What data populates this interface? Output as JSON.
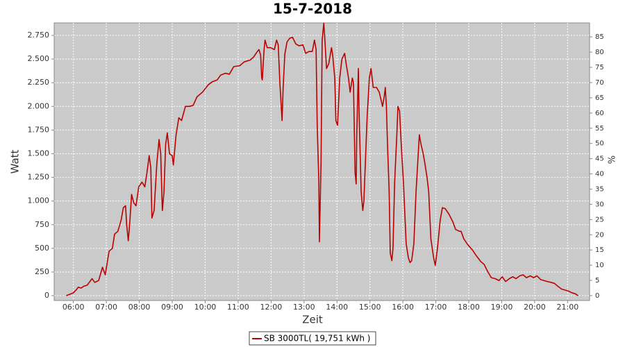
{
  "chart_data": {
    "type": "line",
    "title": "15-7-2018",
    "x_label": "Zeit",
    "y_label": "Watt",
    "y2_label": "%",
    "x": [
      "05:47",
      "06:00",
      "06:05",
      "06:09",
      "06:14",
      "06:19",
      "06:25",
      "06:34",
      "06:39",
      "06:46",
      "06:53",
      "06:58",
      "07:05",
      "07:11",
      "07:15",
      "07:21",
      "07:27",
      "07:31",
      "07:35",
      "07:37",
      "07:40",
      "07:43",
      "07:46",
      "07:50",
      "07:54",
      "07:59",
      "08:05",
      "08:10",
      "08:14",
      "08:18",
      "08:21",
      "08:23",
      "08:27",
      "08:32",
      "08:36",
      "08:39",
      "08:42",
      "08:45",
      "08:48",
      "08:51",
      "08:55",
      "09:00",
      "09:02",
      "09:07",
      "09:12",
      "09:17",
      "09:24",
      "09:31",
      "09:38",
      "09:45",
      "09:55",
      "10:06",
      "10:13",
      "10:22",
      "10:28",
      "10:37",
      "10:44",
      "10:52",
      "11:03",
      "11:11",
      "11:22",
      "11:28",
      "11:35",
      "11:38",
      "11:41",
      "11:43",
      "11:44",
      "11:47",
      "11:49",
      "11:53",
      "11:59",
      "12:06",
      "12:10",
      "12:13",
      "12:16",
      "12:20",
      "12:22",
      "12:25",
      "12:29",
      "12:34",
      "12:39",
      "12:45",
      "12:51",
      "12:58",
      "13:03",
      "13:09",
      "13:15",
      "13:19",
      "13:22",
      "13:24",
      "13:27",
      "13:28",
      "13:31",
      "13:33",
      "13:36",
      "13:38",
      "13:41",
      "13:45",
      "13:50",
      "13:52",
      "13:56",
      "13:58",
      "14:01",
      "14:05",
      "14:09",
      "14:14",
      "14:17",
      "14:21",
      "14:24",
      "14:28",
      "14:30",
      "14:33",
      "14:35",
      "14:36",
      "14:39",
      "14:40",
      "14:44",
      "14:47",
      "14:49",
      "14:53",
      "14:55",
      "14:59",
      "15:02",
      "15:06",
      "15:12",
      "15:17",
      "15:21",
      "15:23",
      "15:26",
      "15:28",
      "15:30",
      "15:32",
      "15:35",
      "15:37",
      "15:40",
      "15:42",
      "15:45",
      "15:49",
      "15:51",
      "15:54",
      "15:57",
      "16:01",
      "16:06",
      "16:10",
      "16:13",
      "16:16",
      "16:20",
      "16:24",
      "16:28",
      "16:30",
      "16:33",
      "16:37",
      "16:40",
      "16:44",
      "16:47",
      "16:51",
      "16:56",
      "16:59",
      "17:03",
      "17:08",
      "17:12",
      "17:17",
      "17:24",
      "17:31",
      "17:36",
      "17:43",
      "17:46",
      "17:51",
      "17:58",
      "18:07",
      "18:14",
      "18:22",
      "18:28",
      "18:34",
      "18:41",
      "18:48",
      "18:55",
      "19:01",
      "19:07",
      "19:14",
      "19:20",
      "19:26",
      "19:33",
      "19:39",
      "19:45",
      "19:52",
      "19:58",
      "20:04",
      "20:11",
      "20:17",
      "20:23",
      "20:30",
      "20:36",
      "20:42",
      "20:49",
      "20:55",
      "21:01",
      "21:08",
      "21:14",
      "21:19"
    ],
    "series": [
      {
        "name": "SB 3000TL( 19,751 kWh )",
        "color": "#bb0000",
        "values": [
          0,
          30,
          60,
          90,
          80,
          100,
          110,
          180,
          140,
          160,
          300,
          220,
          470,
          500,
          650,
          680,
          800,
          930,
          950,
          750,
          580,
          800,
          1070,
          980,
          950,
          1150,
          1200,
          1150,
          1300,
          1480,
          1350,
          820,
          900,
          1400,
          1650,
          1500,
          900,
          1100,
          1600,
          1720,
          1500,
          1480,
          1380,
          1700,
          1880,
          1850,
          2000,
          2000,
          2010,
          2100,
          2150,
          2230,
          2260,
          2280,
          2330,
          2350,
          2340,
          2420,
          2430,
          2470,
          2490,
          2520,
          2580,
          2600,
          2540,
          2300,
          2280,
          2580,
          2700,
          2620,
          2620,
          2600,
          2700,
          2650,
          2250,
          1850,
          2200,
          2550,
          2680,
          2720,
          2730,
          2660,
          2640,
          2650,
          2560,
          2580,
          2580,
          2700,
          2600,
          1800,
          1200,
          570,
          1400,
          2700,
          2880,
          2700,
          2400,
          2450,
          2620,
          2550,
          2300,
          1850,
          1800,
          2300,
          2500,
          2560,
          2440,
          2300,
          2150,
          2300,
          2250,
          1300,
          1180,
          1700,
          2400,
          2000,
          1100,
          900,
          1000,
          1600,
          1900,
          2300,
          2400,
          2200,
          2200,
          2150,
          2050,
          2000,
          2100,
          2200,
          2000,
          1600,
          1100,
          450,
          370,
          500,
          1200,
          1700,
          2000,
          1950,
          1600,
          1200,
          550,
          400,
          350,
          370,
          550,
          1100,
          1500,
          1700,
          1600,
          1500,
          1400,
          1250,
          1100,
          600,
          400,
          320,
          500,
          800,
          930,
          920,
          860,
          780,
          700,
          680,
          680,
          600,
          540,
          480,
          420,
          360,
          330,
          260,
          190,
          180,
          160,
          200,
          150,
          180,
          200,
          180,
          210,
          220,
          190,
          210,
          190,
          210,
          170,
          160,
          150,
          140,
          130,
          100,
          70,
          60,
          50,
          30,
          20,
          0
        ]
      }
    ],
    "xlim": [
      "05:25",
      "21:40"
    ],
    "xticks": [
      "06:00",
      "07:00",
      "08:00",
      "09:00",
      "10:00",
      "11:00",
      "12:00",
      "13:00",
      "14:00",
      "15:00",
      "16:00",
      "17:00",
      "18:00",
      "19:00",
      "20:00",
      "21:00"
    ],
    "ylim": [
      -51,
      2882
    ],
    "yticks": [
      0,
      250,
      500,
      750,
      {
        "value": 1000,
        "label": "1.000"
      },
      {
        "value": 1250,
        "label": "1.250"
      },
      {
        "value": 1500,
        "label": "1.500"
      },
      {
        "value": 1750,
        "label": "1.750"
      },
      {
        "value": 2000,
        "label": "2.000"
      },
      {
        "value": 2250,
        "label": "2.250"
      },
      {
        "value": 2500,
        "label": "2.500"
      },
      {
        "value": 2750,
        "label": "2.750"
      }
    ],
    "y2lim": [
      -1.6,
      89.6
    ],
    "y2ticks": [
      0,
      5,
      10,
      15,
      20,
      25,
      30,
      35,
      40,
      45,
      50,
      55,
      60,
      65,
      70,
      75,
      80,
      85
    ],
    "grid": true,
    "legend": "bottom"
  }
}
